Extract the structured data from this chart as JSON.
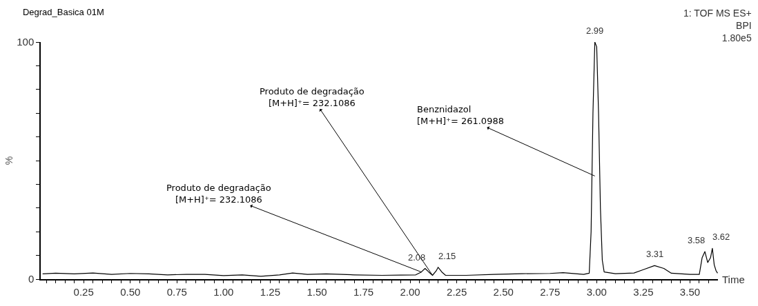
{
  "chart_data": {
    "type": "line",
    "title": "Degrad_Basica 01M",
    "xlabel": "Time",
    "ylabel": "%",
    "x": [
      0.03,
      0.1,
      0.2,
      0.3,
      0.4,
      0.5,
      0.6,
      0.7,
      0.8,
      0.9,
      1.0,
      1.1,
      1.2,
      1.3,
      1.37,
      1.45,
      1.55,
      1.7,
      1.85,
      1.95,
      2.03,
      2.06,
      2.08,
      2.1,
      2.12,
      2.14,
      2.15,
      2.17,
      2.19,
      2.3,
      2.45,
      2.6,
      2.75,
      2.82,
      2.93,
      2.96,
      2.97,
      2.98,
      2.99,
      3.0,
      3.01,
      3.02,
      3.03,
      3.04,
      3.1,
      3.2,
      3.25,
      3.31,
      3.36,
      3.4,
      3.5,
      3.55,
      3.565,
      3.58,
      3.595,
      3.61,
      3.62,
      3.63,
      3.64,
      3.648
    ],
    "series": [
      {
        "color": "#000000",
        "values": [
          2.2,
          2.5,
          2.2,
          2.6,
          2.0,
          2.4,
          2.2,
          1.8,
          2.0,
          2.0,
          1.5,
          1.8,
          1.2,
          1.8,
          2.6,
          2.0,
          2.2,
          1.8,
          1.6,
          1.7,
          1.8,
          3.0,
          4.5,
          3.0,
          1.6,
          3.5,
          5.0,
          3.0,
          1.6,
          1.6,
          2.0,
          2.3,
          2.4,
          2.7,
          2.0,
          2.5,
          20,
          70,
          100,
          98,
          70,
          30,
          8,
          3,
          2.3,
          2.6,
          4.0,
          5.7,
          4.5,
          2.5,
          2.0,
          2.0,
          9,
          11.6,
          7,
          9,
          13,
          6,
          3.5,
          2.5
        ]
      }
    ],
    "xlim": [
      0.02,
      3.65
    ],
    "ylim": [
      0,
      100
    ],
    "xticks": [
      {
        "value": 0.05,
        "label": null
      },
      {
        "value": 0.1,
        "label": null
      },
      {
        "value": 0.15,
        "label": null
      },
      {
        "value": 0.2,
        "label": null
      },
      {
        "value": 0.25,
        "label": "0.25"
      },
      {
        "value": 0.3,
        "label": null
      },
      {
        "value": 0.35,
        "label": null
      },
      {
        "value": 0.4,
        "label": null
      },
      {
        "value": 0.45,
        "label": null
      },
      {
        "value": 0.5,
        "label": "0.50"
      },
      {
        "value": 0.55,
        "label": null
      },
      {
        "value": 0.6,
        "label": null
      },
      {
        "value": 0.65,
        "label": null
      },
      {
        "value": 0.7,
        "label": null
      },
      {
        "value": 0.75,
        "label": "0.75"
      },
      {
        "value": 0.8,
        "label": null
      },
      {
        "value": 0.85,
        "label": null
      },
      {
        "value": 0.9,
        "label": null
      },
      {
        "value": 0.95,
        "label": null
      },
      {
        "value": 1.0,
        "label": "1.00"
      },
      {
        "value": 1.05,
        "label": null
      },
      {
        "value": 1.1,
        "label": null
      },
      {
        "value": 1.15,
        "label": null
      },
      {
        "value": 1.2,
        "label": null
      },
      {
        "value": 1.25,
        "label": "1.25"
      },
      {
        "value": 1.3,
        "label": null
      },
      {
        "value": 1.35,
        "label": null
      },
      {
        "value": 1.4,
        "label": null
      },
      {
        "value": 1.45,
        "label": null
      },
      {
        "value": 1.5,
        "label": "1.50"
      },
      {
        "value": 1.55,
        "label": null
      },
      {
        "value": 1.6,
        "label": null
      },
      {
        "value": 1.65,
        "label": null
      },
      {
        "value": 1.7,
        "label": null
      },
      {
        "value": 1.75,
        "label": "1.75"
      },
      {
        "value": 1.8,
        "label": null
      },
      {
        "value": 1.85,
        "label": null
      },
      {
        "value": 1.9,
        "label": null
      },
      {
        "value": 1.95,
        "label": null
      },
      {
        "value": 2.0,
        "label": "2.00"
      },
      {
        "value": 2.05,
        "label": null
      },
      {
        "value": 2.1,
        "label": null
      },
      {
        "value": 2.15,
        "label": null
      },
      {
        "value": 2.2,
        "label": null
      },
      {
        "value": 2.25,
        "label": "2.25"
      },
      {
        "value": 2.3,
        "label": null
      },
      {
        "value": 2.35,
        "label": null
      },
      {
        "value": 2.4,
        "label": null
      },
      {
        "value": 2.45,
        "label": null
      },
      {
        "value": 2.5,
        "label": "2.50"
      },
      {
        "value": 2.55,
        "label": null
      },
      {
        "value": 2.6,
        "label": null
      },
      {
        "value": 2.65,
        "label": null
      },
      {
        "value": 2.7,
        "label": null
      },
      {
        "value": 2.75,
        "label": "2.75"
      },
      {
        "value": 2.8,
        "label": null
      },
      {
        "value": 2.85,
        "label": null
      },
      {
        "value": 2.9,
        "label": null
      },
      {
        "value": 2.95,
        "label": null
      },
      {
        "value": 3.0,
        "label": "3.00"
      },
      {
        "value": 3.05,
        "label": null
      },
      {
        "value": 3.1,
        "label": null
      },
      {
        "value": 3.15,
        "label": null
      },
      {
        "value": 3.2,
        "label": null
      },
      {
        "value": 3.25,
        "label": "3.25"
      },
      {
        "value": 3.3,
        "label": null
      },
      {
        "value": 3.35,
        "label": null
      },
      {
        "value": 3.4,
        "label": null
      },
      {
        "value": 3.45,
        "label": null
      },
      {
        "value": 3.5,
        "label": "3.50"
      },
      {
        "value": 3.55,
        "label": null
      },
      {
        "value": 3.6,
        "label": null
      }
    ],
    "yticks": [
      0,
      {
        "value": 10,
        "label": null
      },
      {
        "value": 20,
        "label": null
      },
      {
        "value": 30,
        "label": null
      },
      {
        "value": 40,
        "label": null
      },
      {
        "value": 50,
        "label": null
      },
      {
        "value": 60,
        "label": null
      },
      {
        "value": 70,
        "label": null
      },
      {
        "value": 80,
        "label": null
      },
      {
        "value": 90,
        "label": null
      },
      100
    ],
    "marker": "none",
    "line_style": "solid",
    "annotations": [
      {
        "text": "Produto de degradação\n[M+H]⁺= 232.1086",
        "x": 2.06,
        "y": 3.0
      },
      {
        "text": "Produto de degradação\n[M+H]⁺= 232.1086",
        "x": 2.12,
        "y": 1.6
      },
      {
        "text": "Benznidazol\n[M+H]⁺= 261.0988",
        "x": 2.99,
        "y": 43.5
      },
      {
        "text": "2.08",
        "x": 2.08,
        "y": 4.5
      },
      {
        "text": "2.15",
        "x": 2.15,
        "y": 5.0
      },
      {
        "text": "2.99",
        "x": 2.99,
        "y": 100
      },
      {
        "text": "3.31",
        "x": 3.31,
        "y": 5.7
      },
      {
        "text": "3.58",
        "x": 3.58,
        "y": 11.6
      },
      {
        "text": "3.62",
        "x": 3.62,
        "y": 13
      },
      "1: TOF MS ES+\nBPI\n1.80e5"
    ]
  }
}
